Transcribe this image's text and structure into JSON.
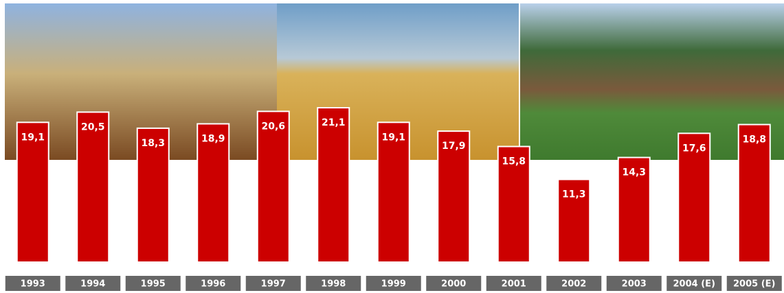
{
  "chart_data": {
    "type": "bar",
    "categories": [
      "1993",
      "1994",
      "1995",
      "1996",
      "1997",
      "1998",
      "1999",
      "2000",
      "2001",
      "2002",
      "2003",
      "2004 (E)",
      "2005 (E)"
    ],
    "values": [
      19.1,
      20.5,
      18.3,
      18.9,
      20.6,
      21.1,
      19.1,
      17.9,
      15.8,
      11.3,
      14.3,
      17.6,
      18.8
    ],
    "value_labels": [
      "19,1",
      "20,5",
      "18,3",
      "18,9",
      "20,6",
      "21,1",
      "19,1",
      "17,9",
      "15,8",
      "11,3",
      "14,3",
      "17,6",
      "18,8"
    ],
    "color": "#cc0000"
  }
}
